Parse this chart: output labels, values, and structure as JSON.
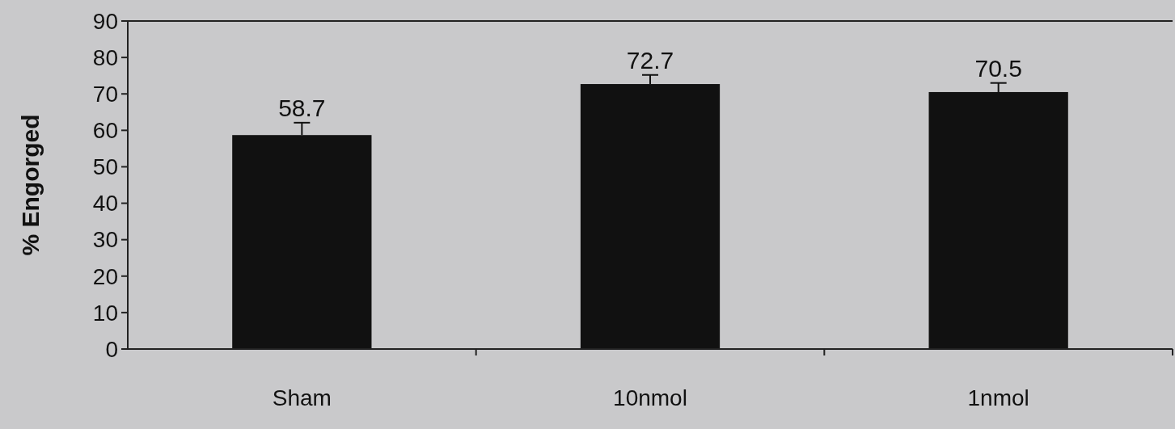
{
  "chart_data": {
    "type": "bar",
    "ylabel": "% Engorged",
    "categories": [
      "Sham",
      "10nmol",
      "1nmol"
    ],
    "values": [
      58.7,
      72.7,
      70.5
    ],
    "errors": [
      3.4,
      2.5,
      2.5
    ],
    "color": "#111111",
    "data_labels": true,
    "ylim": [
      0,
      90
    ],
    "yticks": [
      0,
      10,
      20,
      30,
      40,
      50,
      60,
      70,
      80,
      90
    ],
    "grid": false
  }
}
